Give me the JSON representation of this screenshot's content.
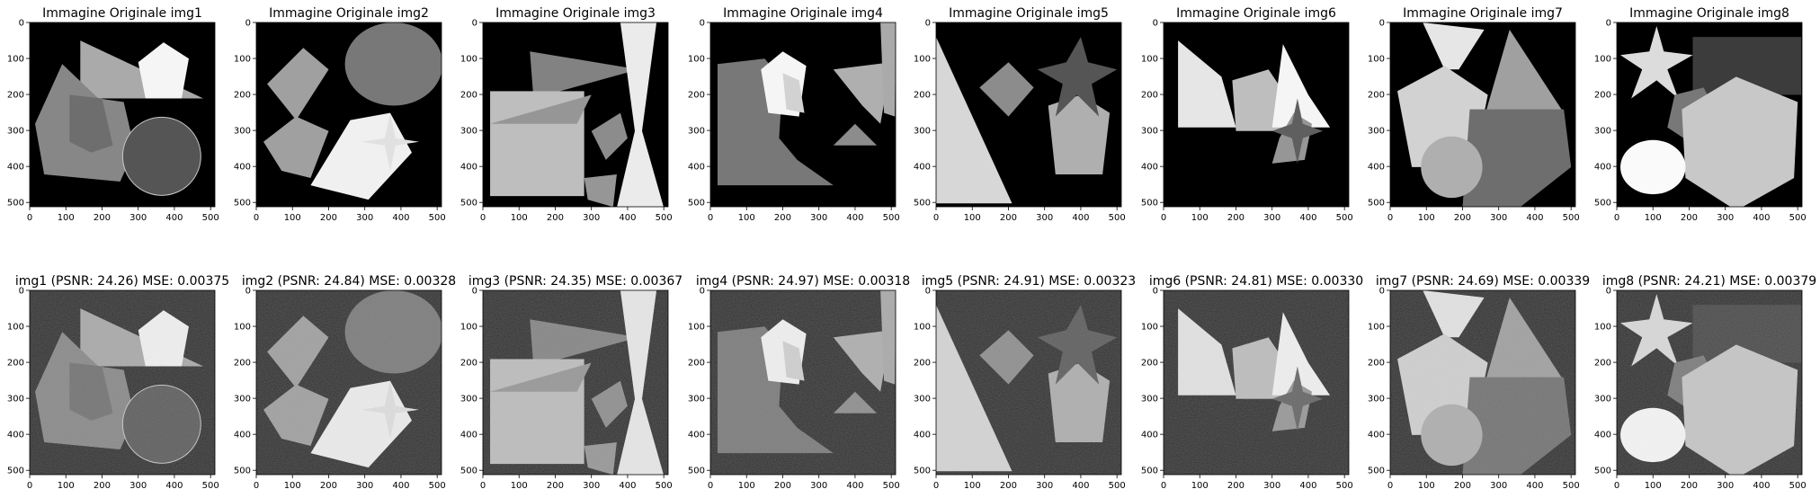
{
  "chart_data": {
    "type": "image_grid",
    "rows": 2,
    "columns": 8,
    "xticks": [
      "0",
      "100",
      "200",
      "300",
      "400",
      "500"
    ],
    "yticks": [
      "0",
      "100",
      "200",
      "300",
      "400",
      "500"
    ],
    "xlim": [
      0,
      512
    ],
    "ylim": [
      512,
      0
    ],
    "panels": [
      {
        "title": "Immagine Originale img1",
        "image": "img1",
        "noisy": false
      },
      {
        "title": "Immagine Originale img2",
        "image": "img2",
        "noisy": false
      },
      {
        "title": "Immagine Originale img3",
        "image": "img3",
        "noisy": false
      },
      {
        "title": "Immagine Originale img4",
        "image": "img4",
        "noisy": false
      },
      {
        "title": "Immagine Originale img5",
        "image": "img5",
        "noisy": false
      },
      {
        "title": "Immagine Originale img6",
        "image": "img6",
        "noisy": false
      },
      {
        "title": "Immagine Originale img7",
        "image": "img7",
        "noisy": false
      },
      {
        "title": "Immagine Originale img8",
        "image": "img8",
        "noisy": false
      },
      {
        "title": "img1 (PSNR: 24.26) MSE: 0.00375",
        "image": "img1",
        "noisy": true,
        "psnr": 24.26,
        "mse": 0.00375
      },
      {
        "title": "img2 (PSNR: 24.84) MSE: 0.00328",
        "image": "img2",
        "noisy": true,
        "psnr": 24.84,
        "mse": 0.00328
      },
      {
        "title": "img3 (PSNR: 24.35) MSE: 0.00367",
        "image": "img3",
        "noisy": true,
        "psnr": 24.35,
        "mse": 0.00367
      },
      {
        "title": "img4 (PSNR: 24.97) MSE: 0.00318",
        "image": "img4",
        "noisy": true,
        "psnr": 24.97,
        "mse": 0.00318
      },
      {
        "title": "img5 (PSNR: 24.91) MSE: 0.00323",
        "image": "img5",
        "noisy": true,
        "psnr": 24.91,
        "mse": 0.00323
      },
      {
        "title": "img6 (PSNR: 24.81) MSE: 0.00330",
        "image": "img6",
        "noisy": true,
        "psnr": 24.81,
        "mse": 0.0033
      },
      {
        "title": "img7 (PSNR: 24.69) MSE: 0.00339",
        "image": "img7",
        "noisy": true,
        "psnr": 24.69,
        "mse": 0.00339
      },
      {
        "title": "img8 (PSNR: 24.21) MSE: 0.00379",
        "image": "img8",
        "noisy": true,
        "psnr": 24.21,
        "mse": 0.00379
      }
    ]
  }
}
